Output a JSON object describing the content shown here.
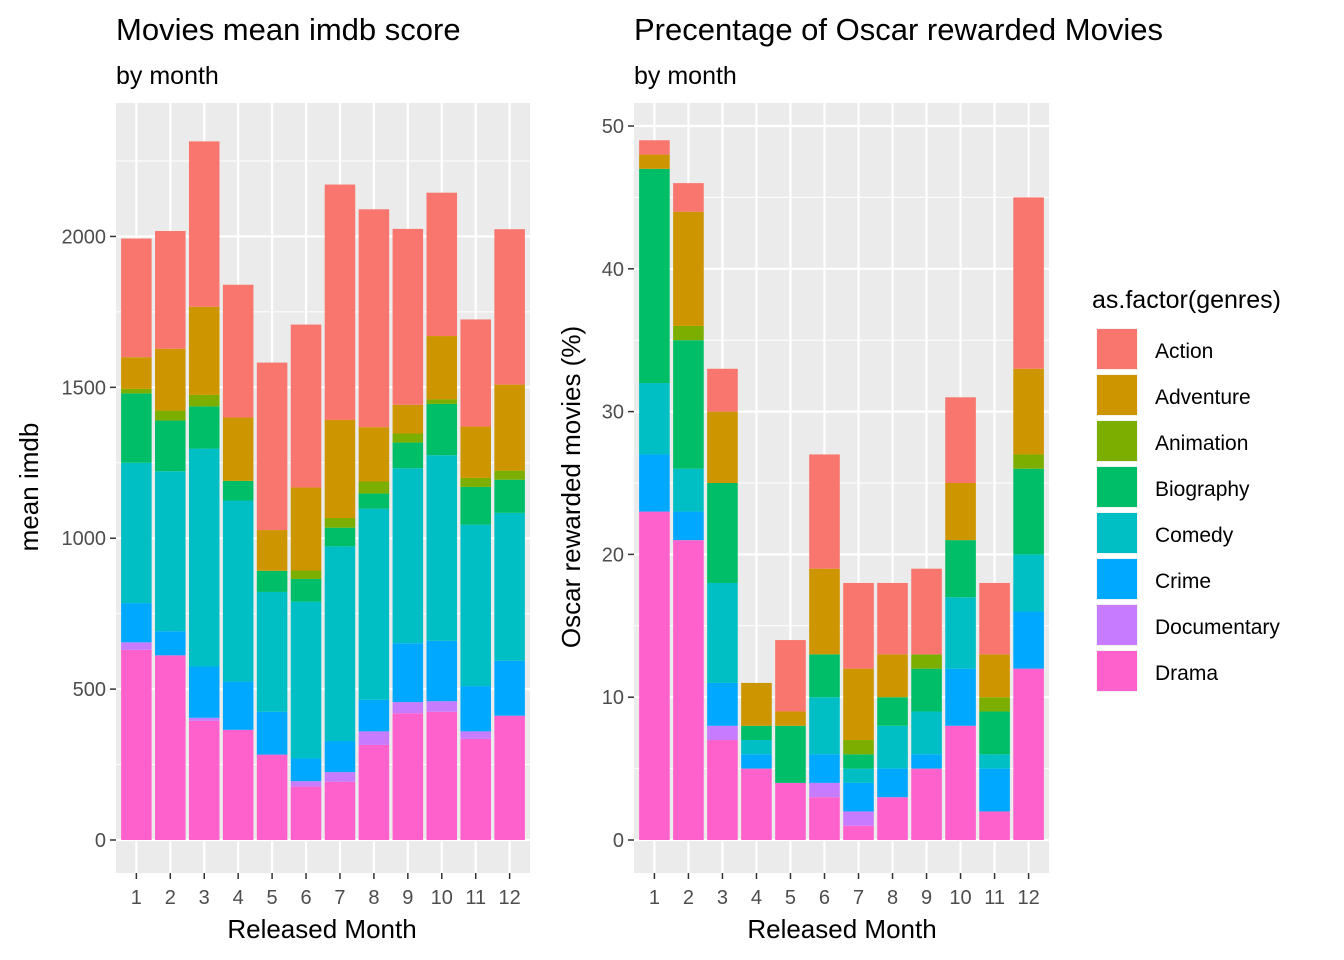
{
  "colors": {
    "Action": "#F8766D",
    "Adventure": "#CD9600",
    "Animation": "#7CAE00",
    "Biography": "#00BE67",
    "Comedy": "#00BFC4",
    "Crime": "#00A9FF",
    "Documentary": "#C77CFF",
    "Drama": "#FF61CC",
    "panel_bg": "#EBEBEB",
    "grid": "#FFFFFF"
  },
  "legend": {
    "title": "as.factor(genres)",
    "items": [
      "Action",
      "Adventure",
      "Animation",
      "Biography",
      "Comedy",
      "Crime",
      "Documentary",
      "Drama"
    ]
  },
  "chart_data": [
    {
      "type": "bar",
      "stacked": true,
      "title": "Movies mean imdb score",
      "subtitle": "by month",
      "xlabel": "Released Month",
      "ylabel": "mean imdb",
      "ylim": [
        0,
        2400
      ],
      "yticks": [
        0,
        500,
        1000,
        1500,
        2000
      ],
      "categories": [
        "1",
        "2",
        "3",
        "4",
        "5",
        "6",
        "7",
        "8",
        "9",
        "10",
        "11",
        "12"
      ],
      "series": [
        {
          "name": "Drama",
          "values": [
            630,
            612,
            395,
            365,
            283,
            177,
            193,
            315,
            420,
            425,
            335,
            412
          ]
        },
        {
          "name": "Documentary",
          "values": [
            25,
            0,
            10,
            0,
            0,
            18,
            32,
            45,
            37,
            35,
            25,
            0
          ]
        },
        {
          "name": "Crime",
          "values": [
            130,
            80,
            170,
            160,
            142,
            75,
            103,
            105,
            195,
            200,
            150,
            182
          ]
        },
        {
          "name": "Comedy",
          "values": [
            465,
            530,
            722,
            600,
            397,
            520,
            645,
            633,
            580,
            615,
            535,
            490
          ]
        },
        {
          "name": "Biography",
          "values": [
            230,
            168,
            140,
            65,
            70,
            75,
            62,
            50,
            85,
            170,
            125,
            110
          ]
        },
        {
          "name": "Animation",
          "values": [
            15,
            33,
            38,
            0,
            0,
            28,
            32,
            40,
            30,
            15,
            30,
            30
          ]
        },
        {
          "name": "Adventure",
          "values": [
            105,
            205,
            292,
            210,
            135,
            275,
            325,
            180,
            95,
            210,
            170,
            285
          ]
        },
        {
          "name": "Action",
          "values": [
            393,
            390,
            548,
            440,
            555,
            540,
            780,
            722,
            583,
            475,
            355,
            515
          ]
        }
      ]
    },
    {
      "type": "bar",
      "stacked": true,
      "title": "Precentage of Oscar rewarded Movies",
      "subtitle": "by month",
      "xlabel": "Released Month",
      "ylabel": "Oscar rewarded movies (%)",
      "ylim": [
        0,
        52
      ],
      "yticks": [
        0,
        10,
        20,
        30,
        40,
        50
      ],
      "categories": [
        "1",
        "2",
        "3",
        "4",
        "5",
        "6",
        "7",
        "8",
        "9",
        "10",
        "11",
        "12"
      ],
      "series": [
        {
          "name": "Drama",
          "values": [
            23,
            21,
            7,
            5,
            4,
            3,
            1,
            3,
            5,
            8,
            2,
            12
          ]
        },
        {
          "name": "Documentary",
          "values": [
            0,
            0,
            1,
            0,
            0,
            1,
            1,
            0,
            0,
            0,
            0,
            0
          ]
        },
        {
          "name": "Crime",
          "values": [
            4,
            2,
            3,
            1,
            0,
            2,
            2,
            2,
            1,
            4,
            3,
            4
          ]
        },
        {
          "name": "Comedy",
          "values": [
            5,
            3,
            7,
            1,
            0,
            4,
            1,
            3,
            3,
            5,
            1,
            4
          ]
        },
        {
          "name": "Biography",
          "values": [
            15,
            9,
            7,
            1,
            4,
            3,
            1,
            2,
            3,
            4,
            3,
            6
          ]
        },
        {
          "name": "Animation",
          "values": [
            0,
            1,
            0,
            0,
            0,
            0,
            1,
            0,
            1,
            0,
            1,
            1
          ]
        },
        {
          "name": "Adventure",
          "values": [
            1,
            8,
            5,
            3,
            1,
            6,
            5,
            3,
            0,
            4,
            3,
            6
          ]
        },
        {
          "name": "Action",
          "values": [
            1,
            2,
            3,
            0,
            5,
            8,
            6,
            5,
            6,
            6,
            5,
            12
          ]
        }
      ]
    }
  ]
}
